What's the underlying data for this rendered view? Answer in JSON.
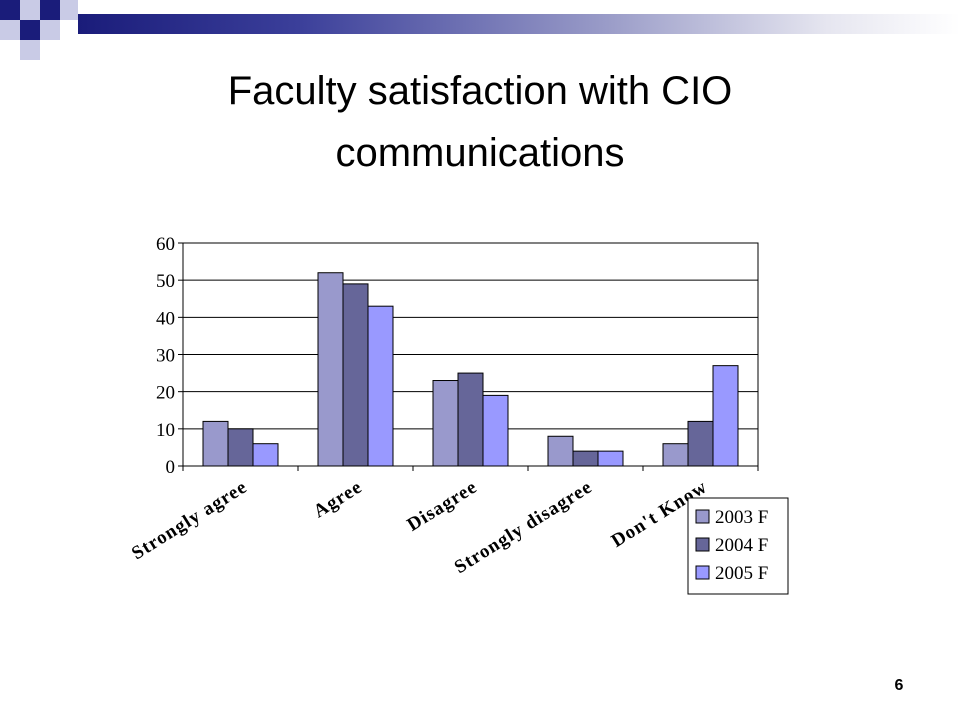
{
  "slide": {
    "title_line1": "Faculty satisfaction with CIO",
    "title_line2": "communications",
    "page_number": "6"
  },
  "chart_data": {
    "type": "bar",
    "title": "Faculty satisfaction with CIO communications",
    "categories": [
      "Strongly agree",
      "Agree",
      "Disagree",
      "Strongly disagree",
      "Don't Know"
    ],
    "series": [
      {
        "name": "2003 F",
        "values": [
          12,
          52,
          23,
          8,
          6
        ],
        "color": "#9999cc"
      },
      {
        "name": "2004 F",
        "values": [
          10,
          49,
          25,
          4,
          12
        ],
        "color": "#666699"
      },
      {
        "name": "2005 F",
        "values": [
          6,
          43,
          19,
          4,
          27
        ],
        "color": "#9999ff"
      }
    ],
    "ylim": [
      0,
      60
    ],
    "yticks": [
      0,
      10,
      20,
      30,
      40,
      50,
      60
    ],
    "grid": true,
    "legend_position": "bottom-right",
    "xlabel": "",
    "ylabel": ""
  }
}
